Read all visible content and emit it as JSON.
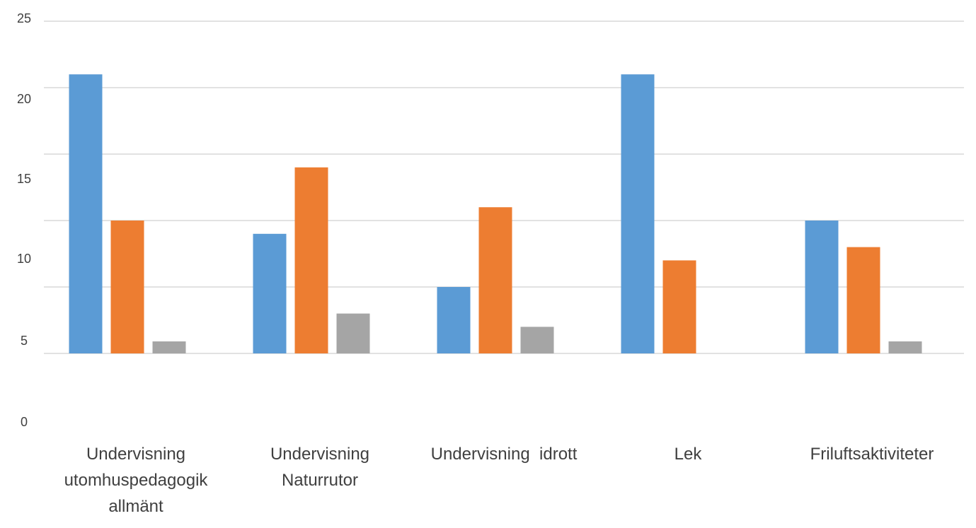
{
  "chart_data": {
    "type": "bar",
    "title": "",
    "xlabel": "",
    "ylabel": "",
    "y_tick_labels": [
      {
        "value": 0,
        "label": "0"
      },
      {
        "value": 5,
        "label": "5"
      },
      {
        "value": 10,
        "label": "10"
      },
      {
        "value": 15,
        "label": "15"
      },
      {
        "value": 20,
        "label": "20"
      },
      {
        "value": 25,
        "label": "25"
      }
    ],
    "categories": [
      [
        "Undervisning",
        "utomhuspedagogik",
        "allmänt"
      ],
      [
        "Undervisning",
        "Naturrutor"
      ],
      [
        "Undervisning  idrott"
      ],
      [
        "Lek"
      ],
      [
        "Friluftsaktiviteter"
      ]
    ],
    "series": [
      {
        "color": "#5b9bd5",
        "values": [
          21,
          9,
          5,
          21,
          10
        ]
      },
      {
        "color": "#ed7d31",
        "values": [
          10,
          14,
          11,
          7,
          8
        ]
      },
      {
        "color": "#a5a5a5",
        "values": [
          0,
          3,
          2,
          -1,
          0
        ]
      }
    ],
    "grid_values": [
      0,
      5,
      10,
      15,
      20,
      25
    ],
    "ylim": [
      -5,
      25
    ],
    "grid": true,
    "legend": "none"
  }
}
